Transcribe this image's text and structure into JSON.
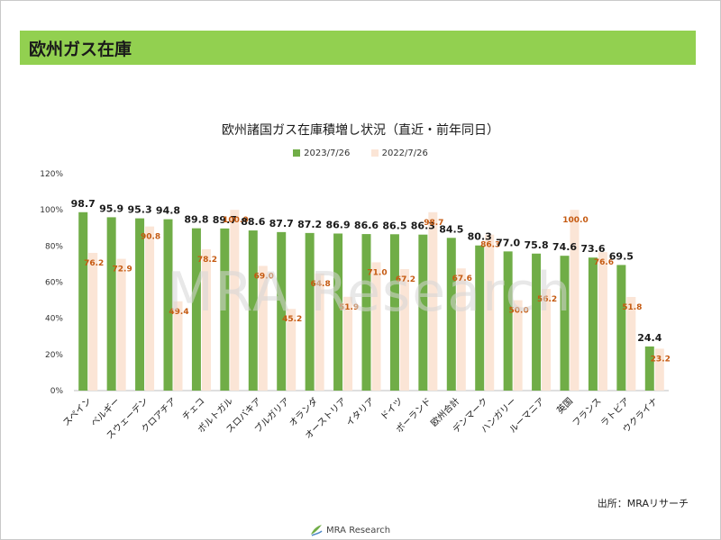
{
  "header": {
    "title": "欧州ガス在庫"
  },
  "colors": {
    "header_bg": "#92d050",
    "series_2023": "#70ad47",
    "series_2022": "#fbe5d6",
    "label_2022": "#c55a11"
  },
  "watermark": "MRA Research",
  "source": "出所：MRAリサーチ",
  "footer": {
    "logo_text": "MRA Research",
    "logo_icon": "leaf-swirl-icon"
  },
  "chart_data": {
    "type": "bar",
    "title": "欧州諸国ガス在庫積増し状況（直近・前年同日）",
    "categories": [
      "スペイン",
      "ベルギー",
      "スウェーデン",
      "クロアチア",
      "チェコ",
      "ポルトガル",
      "スロバキア",
      "ブルガリア",
      "オランダ",
      "オーストリア",
      "イタリア",
      "ドイツ",
      "ポーランド",
      "欧州合計",
      "デンマーク",
      "ハンガリー",
      "ルーマニア",
      "英国",
      "フランス",
      "ラトビア",
      "ウクライナ"
    ],
    "series": [
      {
        "name": "2023/7/26",
        "values": [
          98.7,
          95.9,
          95.3,
          94.8,
          89.8,
          89.7,
          88.6,
          87.7,
          87.2,
          86.9,
          86.6,
          86.5,
          86.3,
          84.5,
          80.3,
          77.0,
          75.8,
          74.6,
          73.6,
          69.5,
          24.4
        ]
      },
      {
        "name": "2022/7/26",
        "values": [
          76.2,
          72.9,
          90.8,
          49.4,
          78.2,
          100.0,
          69.0,
          45.2,
          64.8,
          51.9,
          71.0,
          67.2,
          98.7,
          67.6,
          86.3,
          50.0,
          56.2,
          100.0,
          76.6,
          51.8,
          23.2
        ]
      }
    ],
    "y_tick_labels": [
      "0%",
      "20%",
      "40%",
      "60%",
      "80%",
      "100%",
      "120%"
    ],
    "ylim": [
      0,
      120
    ],
    "grid": false,
    "legend_position": "top-center"
  }
}
